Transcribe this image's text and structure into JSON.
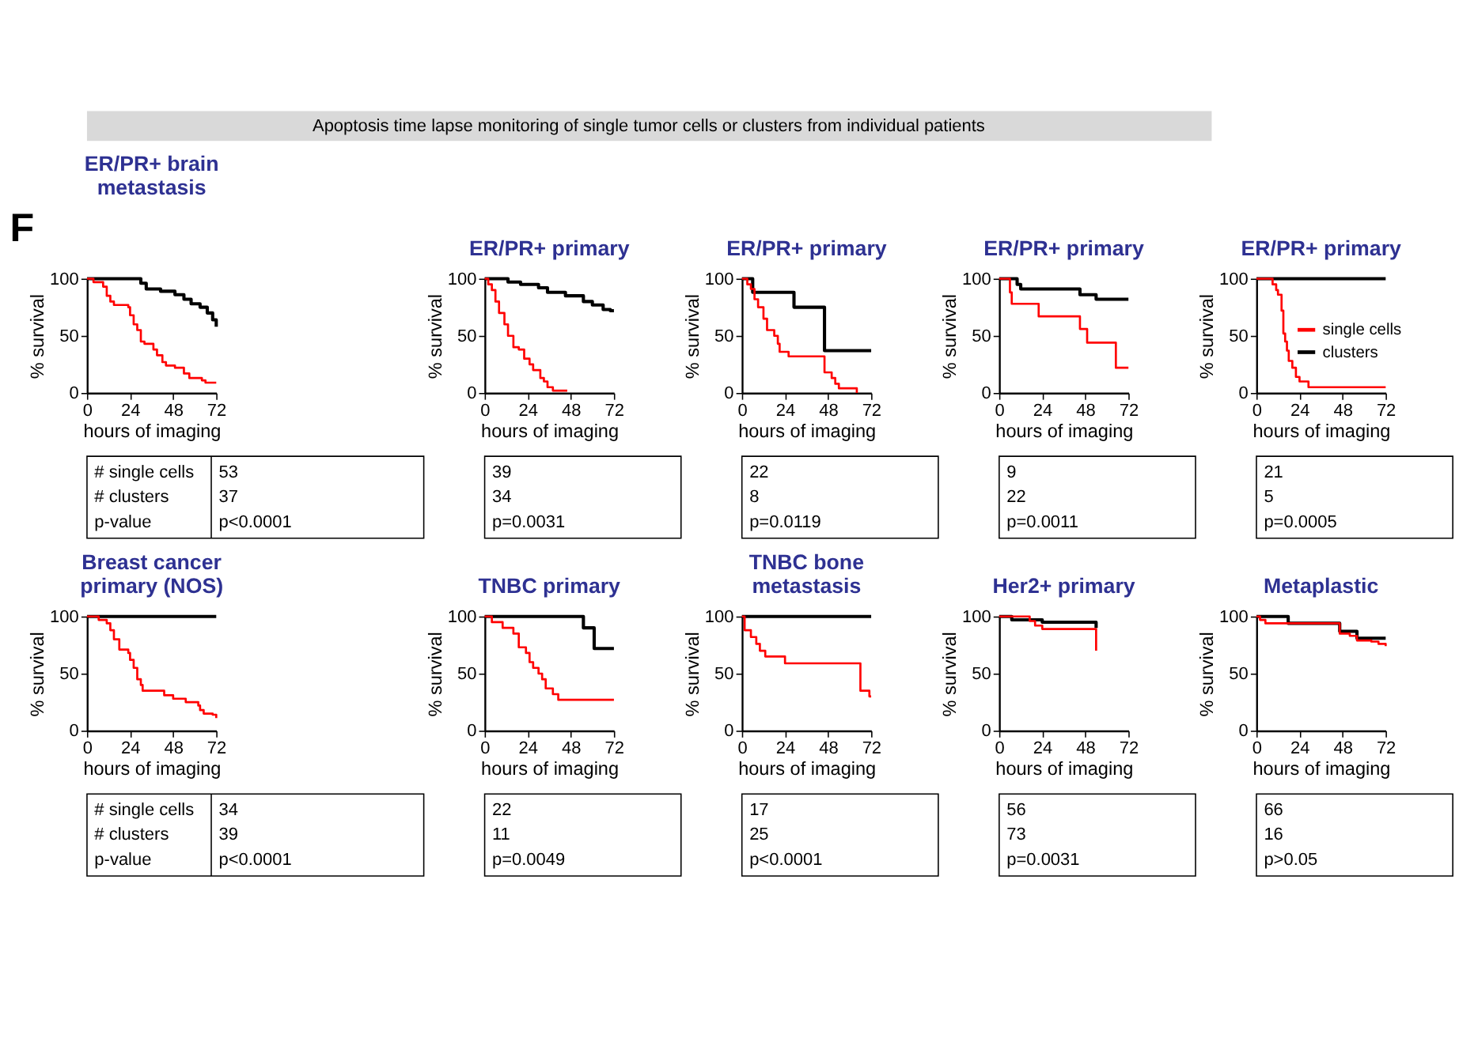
{
  "chart_data": [
    {
      "type": "step",
      "title": "ER/PR+ brain metastasis",
      "xlabel": "hours of imaging",
      "ylabel": "% survival",
      "xlim": [
        0,
        72
      ],
      "ylim": [
        0,
        100
      ],
      "xticks": [
        0,
        24,
        48,
        72
      ],
      "yticks": [
        0,
        50,
        100
      ],
      "series": [
        {
          "color": "#ff0000",
          "x": [
            0,
            3.6,
            9,
            11,
            13,
            15,
            23,
            24,
            26,
            28,
            30,
            32,
            37,
            39,
            42,
            44,
            49,
            54,
            57,
            64,
            66,
            72
          ],
          "values": [
            100,
            97,
            93,
            85,
            80,
            77,
            75,
            68,
            60,
            55,
            45,
            43,
            38,
            33,
            27,
            24,
            22,
            17,
            13,
            11,
            9,
            9
          ]
        },
        {
          "color": "#000000",
          "x": [
            0,
            30,
            33,
            41,
            49,
            54,
            58,
            63,
            67,
            70,
            72
          ],
          "values": [
            100,
            96,
            91,
            89,
            86,
            82,
            78,
            75,
            70,
            64,
            58
          ]
        }
      ],
      "annotations": [
        "Apoptosis time lapse monitoring of single tumor cells or clusters from individual patients",
        "F",
        "# single cells",
        "# clusters",
        "p-value",
        "53",
        "37",
        "p<0.0001"
      ]
    },
    {
      "type": "step",
      "title": "ER/PR+ primary",
      "xlabel": "hours of imaging",
      "ylabel": "% survival",
      "xlim": [
        0,
        72
      ],
      "ylim": [
        0,
        100
      ],
      "xticks": [
        0,
        24,
        48,
        72
      ],
      "yticks": [
        0,
        50,
        100
      ],
      "series": [
        {
          "color": "#ff0000",
          "x": [
            0,
            2,
            4,
            6,
            8,
            11,
            13,
            16,
            19,
            22,
            25,
            27,
            31,
            33,
            35,
            38,
            46
          ],
          "values": [
            100,
            95,
            90,
            80,
            70,
            60,
            50,
            40,
            38,
            30,
            25,
            20,
            13,
            10,
            5,
            2,
            2
          ]
        },
        {
          "color": "#000000",
          "x": [
            0,
            13,
            20,
            30,
            35,
            45,
            55,
            60,
            66,
            70,
            72
          ],
          "values": [
            100,
            97,
            95,
            92,
            88,
            85,
            80,
            77,
            73,
            72,
            72
          ]
        }
      ],
      "annotations": [
        "39",
        "34",
        "p=0.0031"
      ]
    },
    {
      "type": "step",
      "title": "ER/PR+ primary",
      "xlabel": "hours of imaging",
      "ylabel": "% survival",
      "xlim": [
        0,
        72
      ],
      "ylim": [
        0,
        100
      ],
      "xticks": [
        0,
        24,
        48,
        72
      ],
      "yticks": [
        0,
        50,
        100
      ],
      "series": [
        {
          "color": "#ff0000",
          "x": [
            0,
            3,
            5,
            7,
            9,
            12,
            14,
            18,
            20,
            21,
            26,
            46,
            50,
            52,
            54,
            64
          ],
          "values": [
            100,
            95,
            91,
            82,
            75,
            65,
            55,
            50,
            43,
            36,
            32,
            18,
            13,
            8,
            4,
            0
          ]
        },
        {
          "color": "#000000",
          "x": [
            0,
            6,
            29,
            46,
            72
          ],
          "values": [
            100,
            88,
            75,
            37,
            37
          ]
        }
      ],
      "annotations": [
        "22",
        "8",
        "p=0.0119"
      ]
    },
    {
      "type": "step",
      "title": "ER/PR+ primary",
      "xlabel": "hours of imaging",
      "ylabel": "% survival",
      "xlim": [
        0,
        72
      ],
      "ylim": [
        0,
        100
      ],
      "xticks": [
        0,
        24,
        48,
        72
      ],
      "yticks": [
        0,
        50,
        100
      ],
      "series": [
        {
          "color": "#ff0000",
          "x": [
            0,
            6,
            7,
            22,
            45,
            49,
            65,
            72
          ],
          "values": [
            100,
            88,
            78,
            67,
            56,
            44,
            22,
            22
          ]
        },
        {
          "color": "#000000",
          "x": [
            0,
            10,
            12,
            45,
            54,
            72
          ],
          "values": [
            100,
            95,
            91,
            86,
            82,
            82
          ]
        }
      ],
      "annotations": [
        "9",
        "22",
        "p=0.0011"
      ]
    },
    {
      "type": "step",
      "title": "ER/PR+ primary",
      "xlabel": "hours of imaging",
      "ylabel": "% survival",
      "xlim": [
        0,
        72
      ],
      "ylim": [
        0,
        100
      ],
      "xticks": [
        0,
        24,
        48,
        72
      ],
      "yticks": [
        0,
        50,
        100
      ],
      "legend": "right",
      "series": [
        {
          "name": "single cells",
          "color": "#ff0000",
          "x": [
            0,
            9,
            11,
            12,
            14,
            15,
            16,
            17,
            18,
            20,
            22,
            24,
            29,
            72
          ],
          "values": [
            100,
            95,
            90,
            86,
            72,
            52,
            45,
            37,
            28,
            22,
            14,
            10,
            5,
            5
          ]
        },
        {
          "name": "clusters",
          "color": "#000000",
          "x": [
            0,
            72
          ],
          "values": [
            100,
            100
          ]
        }
      ],
      "annotations": [
        "21",
        "5",
        "p=0.0005"
      ]
    },
    {
      "type": "step",
      "title": "Breast cancer primary (NOS)",
      "xlabel": "hours of imaging",
      "ylabel": "% survival",
      "xlim": [
        0,
        72
      ],
      "ylim": [
        0,
        100
      ],
      "xticks": [
        0,
        24,
        48,
        72
      ],
      "yticks": [
        0,
        50,
        100
      ],
      "series": [
        {
          "color": "#ff0000",
          "x": [
            0,
            6.5,
            11,
            13,
            15,
            18,
            23,
            24,
            26,
            28,
            30,
            31,
            43,
            48,
            55,
            62,
            63,
            65,
            70,
            72
          ],
          "values": [
            100,
            97,
            94,
            88,
            80,
            71,
            68,
            62,
            55,
            45,
            40,
            35,
            31,
            28,
            25,
            22,
            18,
            15,
            14,
            11
          ]
        },
        {
          "color": "#000000",
          "x": [
            0,
            72
          ],
          "values": [
            100,
            100
          ]
        }
      ],
      "annotations": [
        "# single cells",
        "# clusters",
        "p-value",
        "34",
        "39",
        "p<0.0001"
      ]
    },
    {
      "type": "step",
      "title": "TNBC primary",
      "xlabel": "hours of imaging",
      "ylabel": "% survival",
      "xlim": [
        0,
        72
      ],
      "ylim": [
        0,
        100
      ],
      "xticks": [
        0,
        24,
        48,
        72
      ],
      "yticks": [
        0,
        50,
        100
      ],
      "series": [
        {
          "color": "#ff0000",
          "x": [
            0,
            4,
            10,
            16,
            19,
            23,
            25,
            27,
            30,
            32,
            34,
            38,
            41,
            72
          ],
          "values": [
            100,
            95,
            90,
            85,
            73,
            68,
            60,
            55,
            50,
            45,
            37,
            32,
            27,
            27
          ]
        },
        {
          "color": "#000000",
          "x": [
            0,
            55,
            61,
            72
          ],
          "values": [
            100,
            90,
            72,
            72
          ]
        }
      ],
      "annotations": [
        "22",
        "11",
        "p=0.0049"
      ]
    },
    {
      "type": "step",
      "title": "TNBC bone metastasis",
      "xlabel": "hours of imaging",
      "ylabel": "% survival",
      "xlim": [
        0,
        72
      ],
      "ylim": [
        0,
        100
      ],
      "xticks": [
        0,
        24,
        48,
        72
      ],
      "yticks": [
        0,
        50,
        100
      ],
      "series": [
        {
          "color": "#ff0000",
          "x": [
            0,
            1.5,
            5,
            8,
            10,
            13,
            24,
            66,
            71,
            72
          ],
          "values": [
            100,
            88,
            82,
            76,
            70,
            65,
            59,
            35,
            30,
            30
          ]
        },
        {
          "color": "#000000",
          "x": [
            0,
            72
          ],
          "values": [
            100,
            100
          ]
        }
      ],
      "annotations": [
        "17",
        "25",
        "p<0.0001"
      ]
    },
    {
      "type": "step",
      "title": "Her2+ primary",
      "xlabel": "hours of imaging",
      "ylabel": "% survival",
      "xlim": [
        0,
        72
      ],
      "ylim": [
        0,
        100
      ],
      "xticks": [
        0,
        24,
        48,
        72
      ],
      "yticks": [
        0,
        50,
        100
      ],
      "series": [
        {
          "color": "#ff0000",
          "x": [
            0,
            17,
            20,
            24,
            54
          ],
          "values": [
            100,
            96,
            92,
            89,
            70
          ]
        },
        {
          "color": "#000000",
          "x": [
            0,
            7,
            24,
            54
          ],
          "values": [
            100,
            97,
            95,
            90
          ]
        }
      ],
      "annotations": [
        "56",
        "73",
        "p=0.0031"
      ]
    },
    {
      "type": "step",
      "title": "Metaplastic",
      "xlabel": "hours of imaging",
      "ylabel": "% survival",
      "xlim": [
        0,
        72
      ],
      "ylim": [
        0,
        100
      ],
      "xticks": [
        0,
        24,
        48,
        72
      ],
      "yticks": [
        0,
        50,
        100
      ],
      "series": [
        {
          "color": "#ff0000",
          "x": [
            0,
            2,
            5,
            46.4,
            52,
            56,
            64,
            68,
            72
          ],
          "values": [
            100,
            97,
            94,
            85,
            83,
            79,
            78,
            76,
            74
          ]
        },
        {
          "color": "#000000",
          "x": [
            0,
            17.7,
            46.4,
            56,
            72
          ],
          "values": [
            100,
            94,
            87,
            81,
            81
          ]
        }
      ],
      "annotations": [
        "66",
        "16",
        "p>0.05"
      ]
    }
  ]
}
